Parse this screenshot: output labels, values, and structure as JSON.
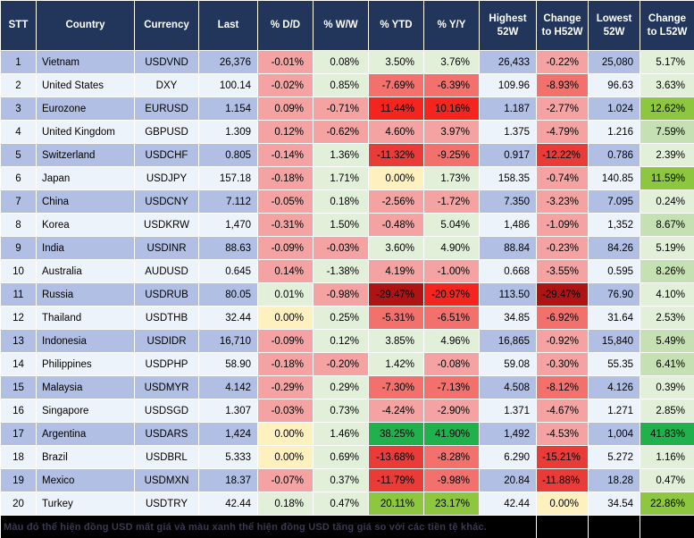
{
  "chart_data": {
    "type": "table",
    "columns": [
      "STT",
      "Country",
      "Currency",
      "Last",
      "% D/D",
      "% W/W",
      "% YTD",
      "% Y/Y",
      "Highest 52W",
      "Change to H52W",
      "Lowest 52W",
      "Change to L52W"
    ],
    "rows": [
      {
        "stt": "1",
        "country": "Vietnam",
        "currency": "USDVND",
        "last": "26,376",
        "dd": {
          "v": "-0.01%",
          "c": "r2"
        },
        "ww": {
          "v": "0.08%",
          "c": "g1"
        },
        "ytd": {
          "v": "3.50%",
          "c": "g1"
        },
        "yy": {
          "v": "3.76%",
          "c": "g1"
        },
        "high": "26,433",
        "ch": {
          "v": "-0.22%",
          "c": "r2"
        },
        "low": "25,080",
        "cl": {
          "v": "5.17%",
          "c": "g1"
        }
      },
      {
        "stt": "2",
        "country": "United States",
        "currency": "DXY",
        "last": "100.14",
        "dd": {
          "v": "-0.02%",
          "c": "r2"
        },
        "ww": {
          "v": "0.85%",
          "c": "g1"
        },
        "ytd": {
          "v": "-7.69%",
          "c": "r3"
        },
        "yy": {
          "v": "-6.39%",
          "c": "r3"
        },
        "high": "109.96",
        "ch": {
          "v": "-8.93%",
          "c": "r3"
        },
        "low": "96.63",
        "cl": {
          "v": "3.63%",
          "c": "g1"
        }
      },
      {
        "stt": "3",
        "country": "Eurozone",
        "currency": "EURUSD",
        "last": "1.154",
        "dd": {
          "v": "0.09%",
          "c": "r2"
        },
        "ww": {
          "v": "-0.71%",
          "c": "r2"
        },
        "ytd": {
          "v": "11.44%",
          "c": "r5"
        },
        "yy": {
          "v": "10.16%",
          "c": "r5"
        },
        "high": "1.187",
        "ch": {
          "v": "-2.77%",
          "c": "r2"
        },
        "low": "1.024",
        "cl": {
          "v": "12.62%",
          "c": "g3"
        }
      },
      {
        "stt": "4",
        "country": "United Kingdom",
        "currency": "GBPUSD",
        "last": "1.309",
        "dd": {
          "v": "0.12%",
          "c": "r2"
        },
        "ww": {
          "v": "-0.62%",
          "c": "r2"
        },
        "ytd": {
          "v": "4.60%",
          "c": "r2"
        },
        "yy": {
          "v": "3.97%",
          "c": "r2"
        },
        "high": "1.375",
        "ch": {
          "v": "-4.79%",
          "c": "r2"
        },
        "low": "1.216",
        "cl": {
          "v": "7.59%",
          "c": "g2"
        }
      },
      {
        "stt": "5",
        "country": "Switzerland",
        "currency": "USDCHF",
        "last": "0.805",
        "dd": {
          "v": "-0.14%",
          "c": "r2"
        },
        "ww": {
          "v": "1.36%",
          "c": "g1"
        },
        "ytd": {
          "v": "-11.32%",
          "c": "r4"
        },
        "yy": {
          "v": "-9.25%",
          "c": "r3"
        },
        "high": "0.917",
        "ch": {
          "v": "-12.22%",
          "c": "r4"
        },
        "low": "0.786",
        "cl": {
          "v": "2.39%",
          "c": "g1"
        }
      },
      {
        "stt": "6",
        "country": "Japan",
        "currency": "USDJPY",
        "last": "157.18",
        "dd": {
          "v": "-0.18%",
          "c": "r2"
        },
        "ww": {
          "v": "1.71%",
          "c": "g1"
        },
        "ytd": {
          "v": "0.00%",
          "c": "y"
        },
        "yy": {
          "v": "1.73%",
          "c": "g1"
        },
        "high": "158.35",
        "ch": {
          "v": "-0.74%",
          "c": "r2"
        },
        "low": "140.85",
        "cl": {
          "v": "11.59%",
          "c": "g3"
        }
      },
      {
        "stt": "7",
        "country": "China",
        "currency": "USDCNY",
        "last": "7.112",
        "dd": {
          "v": "-0.05%",
          "c": "r2"
        },
        "ww": {
          "v": "0.18%",
          "c": "g1"
        },
        "ytd": {
          "v": "-2.56%",
          "c": "r2"
        },
        "yy": {
          "v": "-1.72%",
          "c": "r2"
        },
        "high": "7.350",
        "ch": {
          "v": "-3.23%",
          "c": "r2"
        },
        "low": "7.095",
        "cl": {
          "v": "0.24%",
          "c": "g1"
        }
      },
      {
        "stt": "8",
        "country": "Korea",
        "currency": "USDKRW",
        "last": "1,470",
        "dd": {
          "v": "-0.31%",
          "c": "r2"
        },
        "ww": {
          "v": "1.50%",
          "c": "g1"
        },
        "ytd": {
          "v": "-0.48%",
          "c": "r2"
        },
        "yy": {
          "v": "5.04%",
          "c": "g1"
        },
        "high": "1,486",
        "ch": {
          "v": "-1.09%",
          "c": "r2"
        },
        "low": "1,352",
        "cl": {
          "v": "8.67%",
          "c": "g2"
        }
      },
      {
        "stt": "9",
        "country": "India",
        "currency": "USDINR",
        "last": "88.63",
        "dd": {
          "v": "-0.09%",
          "c": "r2"
        },
        "ww": {
          "v": "-0.03%",
          "c": "r2"
        },
        "ytd": {
          "v": "3.60%",
          "c": "g1"
        },
        "yy": {
          "v": "4.90%",
          "c": "g1"
        },
        "high": "88.84",
        "ch": {
          "v": "-0.23%",
          "c": "r2"
        },
        "low": "84.26",
        "cl": {
          "v": "5.19%",
          "c": "g1"
        }
      },
      {
        "stt": "10",
        "country": "Australia",
        "currency": "AUDUSD",
        "last": "0.645",
        "dd": {
          "v": "0.14%",
          "c": "r2"
        },
        "ww": {
          "v": "-1.38%",
          "c": "g1"
        },
        "ytd": {
          "v": "4.19%",
          "c": "r2"
        },
        "yy": {
          "v": "-1.00%",
          "c": "r2"
        },
        "high": "0.668",
        "ch": {
          "v": "-3.55%",
          "c": "r2"
        },
        "low": "0.595",
        "cl": {
          "v": "8.26%",
          "c": "g2"
        }
      },
      {
        "stt": "11",
        "country": "Russia",
        "currency": "USDRUB",
        "last": "80.05",
        "dd": {
          "v": "0.01%",
          "c": "g1"
        },
        "ww": {
          "v": "-0.98%",
          "c": "r2"
        },
        "ytd": {
          "v": "-29.47%",
          "c": "r6"
        },
        "yy": {
          "v": "-20.97%",
          "c": "r5"
        },
        "high": "113.50",
        "ch": {
          "v": "-29.47%",
          "c": "r6"
        },
        "low": "76.90",
        "cl": {
          "v": "4.10%",
          "c": "g1"
        }
      },
      {
        "stt": "12",
        "country": "Thailand",
        "currency": "USDTHB",
        "last": "32.44",
        "dd": {
          "v": "0.00%",
          "c": "y"
        },
        "ww": {
          "v": "0.25%",
          "c": "g1"
        },
        "ytd": {
          "v": "-5.31%",
          "c": "r3"
        },
        "yy": {
          "v": "-6.51%",
          "c": "r3"
        },
        "high": "34.85",
        "ch": {
          "v": "-6.92%",
          "c": "r3"
        },
        "low": "31.64",
        "cl": {
          "v": "2.53%",
          "c": "g1"
        }
      },
      {
        "stt": "13",
        "country": "Indonesia",
        "currency": "USDIDR",
        "last": "16,710",
        "dd": {
          "v": "-0.09%",
          "c": "r2"
        },
        "ww": {
          "v": "0.12%",
          "c": "g1"
        },
        "ytd": {
          "v": "3.85%",
          "c": "g1"
        },
        "yy": {
          "v": "4.96%",
          "c": "g1"
        },
        "high": "16,865",
        "ch": {
          "v": "-0.92%",
          "c": "r2"
        },
        "low": "15,840",
        "cl": {
          "v": "5.49%",
          "c": "g2"
        }
      },
      {
        "stt": "14",
        "country": "Philippines",
        "currency": "USDPHP",
        "last": "58.90",
        "dd": {
          "v": "-0.18%",
          "c": "r2"
        },
        "ww": {
          "v": "-0.20%",
          "c": "r2"
        },
        "ytd": {
          "v": "1.42%",
          "c": "g1"
        },
        "yy": {
          "v": "-0.08%",
          "c": "r2"
        },
        "high": "59.08",
        "ch": {
          "v": "-0.30%",
          "c": "r2"
        },
        "low": "55.35",
        "cl": {
          "v": "6.41%",
          "c": "g2"
        }
      },
      {
        "stt": "15",
        "country": "Malaysia",
        "currency": "USDMYR",
        "last": "4.142",
        "dd": {
          "v": "-0.29%",
          "c": "r2"
        },
        "ww": {
          "v": "0.29%",
          "c": "g1"
        },
        "ytd": {
          "v": "-7.30%",
          "c": "r3"
        },
        "yy": {
          "v": "-7.13%",
          "c": "r3"
        },
        "high": "4.508",
        "ch": {
          "v": "-8.12%",
          "c": "r3"
        },
        "low": "4.126",
        "cl": {
          "v": "0.39%",
          "c": "g1"
        }
      },
      {
        "stt": "16",
        "country": "Singapore",
        "currency": "USDSGD",
        "last": "1.307",
        "dd": {
          "v": "-0.03%",
          "c": "r2"
        },
        "ww": {
          "v": "0.73%",
          "c": "g1"
        },
        "ytd": {
          "v": "-4.24%",
          "c": "r2"
        },
        "yy": {
          "v": "-2.90%",
          "c": "r2"
        },
        "high": "1.371",
        "ch": {
          "v": "-4.67%",
          "c": "r2"
        },
        "low": "1.271",
        "cl": {
          "v": "2.85%",
          "c": "g1"
        }
      },
      {
        "stt": "17",
        "country": "Argentina",
        "currency": "USDARS",
        "last": "1,424",
        "dd": {
          "v": "0.00%",
          "c": "y"
        },
        "ww": {
          "v": "1.46%",
          "c": "g1"
        },
        "ytd": {
          "v": "38.25%",
          "c": "g4"
        },
        "yy": {
          "v": "41.90%",
          "c": "g4"
        },
        "high": "1,492",
        "ch": {
          "v": "-4.53%",
          "c": "r2"
        },
        "low": "1,004",
        "cl": {
          "v": "41.83%",
          "c": "g4"
        }
      },
      {
        "stt": "18",
        "country": "Brazil",
        "currency": "USDBRL",
        "last": "5.333",
        "dd": {
          "v": "0.00%",
          "c": "y"
        },
        "ww": {
          "v": "0.69%",
          "c": "g1"
        },
        "ytd": {
          "v": "-13.68%",
          "c": "r4"
        },
        "yy": {
          "v": "-8.28%",
          "c": "r3"
        },
        "high": "6.290",
        "ch": {
          "v": "-15.21%",
          "c": "r4"
        },
        "low": "5.272",
        "cl": {
          "v": "1.16%",
          "c": "g1"
        }
      },
      {
        "stt": "19",
        "country": "Mexico",
        "currency": "USDMXN",
        "last": "18.37",
        "dd": {
          "v": "-0.07%",
          "c": "r2"
        },
        "ww": {
          "v": "0.37%",
          "c": "g1"
        },
        "ytd": {
          "v": "-11.79%",
          "c": "r4"
        },
        "yy": {
          "v": "-9.98%",
          "c": "r3"
        },
        "high": "20.84",
        "ch": {
          "v": "-11.88%",
          "c": "r4"
        },
        "low": "18.28",
        "cl": {
          "v": "0.47%",
          "c": "g1"
        }
      },
      {
        "stt": "20",
        "country": "Turkey",
        "currency": "USDTRY",
        "last": "42.44",
        "dd": {
          "v": "0.18%",
          "c": "g1"
        },
        "ww": {
          "v": "0.47%",
          "c": "g1"
        },
        "ytd": {
          "v": "20.11%",
          "c": "g3"
        },
        "yy": {
          "v": "23.17%",
          "c": "g3"
        },
        "high": "42.44",
        "ch": {
          "v": "0.00%",
          "c": "y"
        },
        "low": "34.54",
        "cl": {
          "v": "22.86%",
          "c": "g3"
        }
      }
    ]
  },
  "footer": {
    "note": "Màu đỏ thể hiện đồng USD mất giá và màu xanh thể hiện đồng USD tăng giá so với các tiền tệ khác."
  },
  "colors": {
    "header_bg": "#22365C",
    "header_text": "#FFFFFF",
    "row_odd": "#B1BFE4",
    "row_even": "#EDF3FA",
    "grid": "#FFFFFF",
    "footer_bg": "#000000",
    "footer_text": "#3A3A55",
    "heat": {
      "g1": "#E2EFD9",
      "g2": "#C5E0B3",
      "g3": "#8DC63F",
      "g4": "#21B14C",
      "y": "#FFF0C0",
      "r2": "#F4A2A2",
      "r3": "#F3716D",
      "r4": "#E93B37",
      "r5": "#F4241E",
      "r6": "#AE1413"
    }
  }
}
